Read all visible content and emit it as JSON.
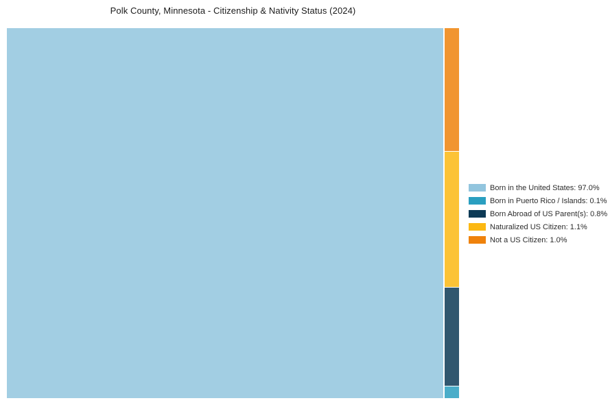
{
  "title": "Polk County, Minnesota - Citizenship & Nativity Status (2024)",
  "chart_data": {
    "type": "treemap",
    "title": "Polk County, Minnesota - Citizenship & Nativity Status (2024)",
    "unit": "%",
    "legend_position": "right",
    "series": [
      {
        "label": "Born in the United States",
        "value": 97.0,
        "color": "#92c5de",
        "legend_label": "Born in the United States: 97.0%"
      },
      {
        "label": "Born in Puerto Rico / Islands",
        "value": 0.1,
        "color": "#2a9fc0",
        "legend_label": "Born in Puerto Rico / Islands: 0.1%"
      },
      {
        "label": "Born Abroad of US Parent(s)",
        "value": 0.8,
        "color": "#0d3a56",
        "legend_label": "Born Abroad of US Parent(s): 0.8%"
      },
      {
        "label": "Naturalized US Citizen",
        "value": 1.1,
        "color": "#fcb813",
        "legend_label": "Naturalized US Citizen: 1.1%"
      },
      {
        "label": "Not a US Citizen",
        "value": 1.0,
        "color": "#ef820c",
        "legend_label": "Not a US Citizen: 1.0%"
      }
    ]
  }
}
